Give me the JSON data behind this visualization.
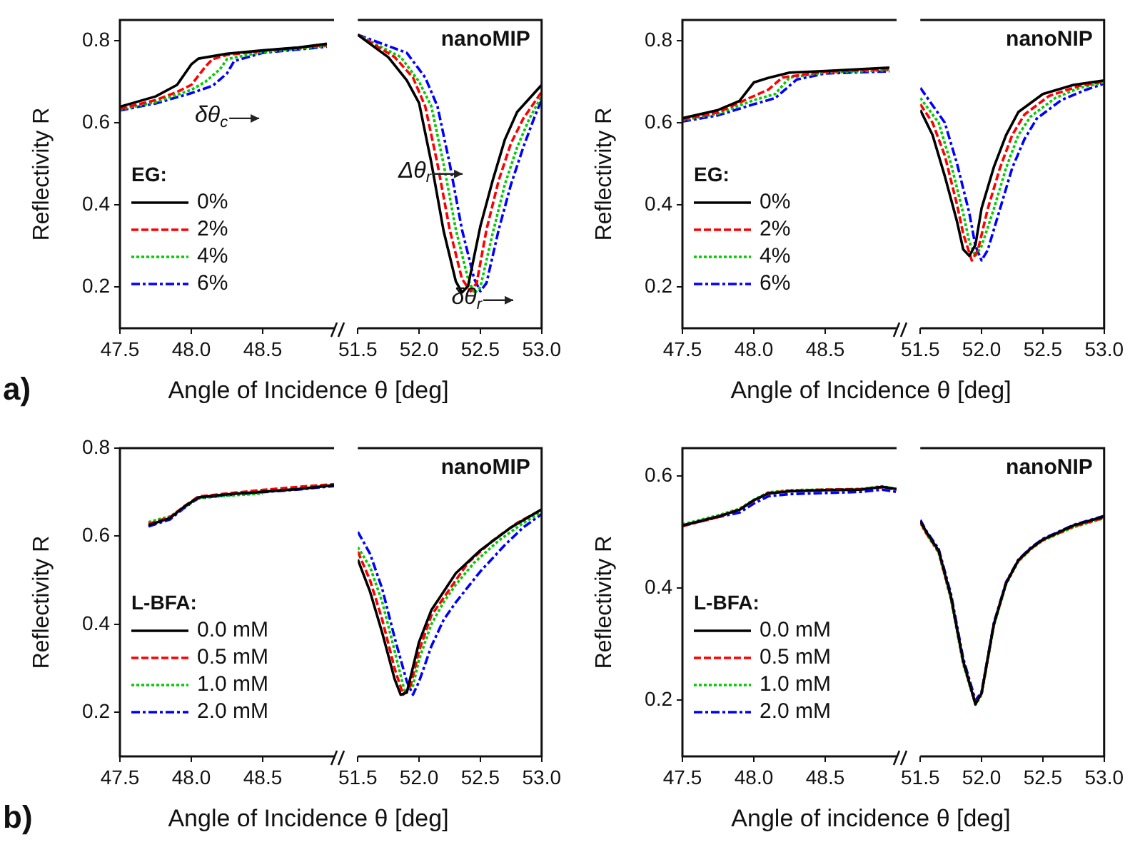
{
  "chart_data": [
    {
      "type": "line",
      "ylabel": "Reflectivity R",
      "xlabel": "Angle of Incidence θ [deg]",
      "legend_title": "EG:",
      "legend": "bottom left",
      "annotations": [
        "a)",
        "δθ$_{c}$"
      ],
      "xlim": [
        47.5,
        49.0
      ],
      "xticks": [
        47.5,
        {
          "value": 48,
          "label": "48.0"
        },
        48.5
      ],
      "ylim": [
        0.1,
        0.85
      ],
      "yticks": [
        0.2,
        0.4,
        0.6,
        0.8
      ],
      "series": [
        {
          "name": "0%",
          "color": "#000000",
          "line_style": "solid",
          "x": [
            47.5,
            47.75,
            47.9,
            48.0,
            48.05,
            48.25,
            48.5,
            48.75,
            48.95
          ],
          "values": [
            0.639,
            0.664,
            0.692,
            0.742,
            0.756,
            0.768,
            0.776,
            0.783,
            0.792
          ]
        },
        {
          "name": "2%",
          "color": "#ff0000",
          "line_style": "dashed",
          "x": [
            47.5,
            47.75,
            47.9,
            48.0,
            48.1,
            48.15,
            48.25,
            48.5,
            48.95
          ],
          "values": [
            0.634,
            0.655,
            0.675,
            0.692,
            0.737,
            0.755,
            0.765,
            0.775,
            0.789
          ]
        },
        {
          "name": "4%",
          "color": "#00cc00",
          "line_style": "dotted",
          "x": [
            47.5,
            47.75,
            48.0,
            48.1,
            48.2,
            48.25,
            48.5,
            48.95
          ],
          "values": [
            0.632,
            0.65,
            0.68,
            0.7,
            0.73,
            0.755,
            0.772,
            0.787
          ]
        },
        {
          "name": "6%",
          "color": "#0000ff",
          "line_style": "dashdot",
          "x": [
            47.5,
            47.75,
            48.0,
            48.15,
            48.25,
            48.3,
            48.5,
            48.95
          ],
          "values": [
            0.63,
            0.647,
            0.672,
            0.69,
            0.72,
            0.75,
            0.77,
            0.785
          ]
        }
      ]
    },
    {
      "type": "line",
      "tick_labels": "x",
      "annotations": [
        "nanoMIP",
        "Δθ$_{r}$",
        "δθ$_{r}$"
      ],
      "xlim": [
        51.5,
        53.0
      ],
      "xticks": [
        51.5,
        {
          "value": 52,
          "label": "52.0"
        },
        52.5,
        {
          "value": 53,
          "label": "53.0"
        }
      ],
      "ylim": [
        0.1,
        0.85
      ],
      "yticks": [
        0.2,
        0.4,
        0.6,
        0.8
      ],
      "series": [
        {
          "color": "#000000",
          "line_style": "solid",
          "x": [
            51.5,
            51.75,
            51.9,
            52.0,
            52.1,
            52.2,
            52.3,
            52.35,
            52.4,
            52.5,
            52.6,
            52.7,
            52.8,
            53.0
          ],
          "values": [
            0.814,
            0.759,
            0.703,
            0.648,
            0.503,
            0.337,
            0.214,
            0.187,
            0.203,
            0.348,
            0.459,
            0.559,
            0.626,
            0.692
          ]
        },
        {
          "color": "#ff0000",
          "line_style": "dashed",
          "x": [
            51.5,
            51.8,
            51.95,
            52.05,
            52.15,
            52.25,
            52.35,
            52.42,
            52.47,
            52.55,
            52.65,
            52.75,
            52.85,
            53.0
          ],
          "values": [
            0.814,
            0.76,
            0.71,
            0.64,
            0.5,
            0.34,
            0.22,
            0.19,
            0.21,
            0.34,
            0.46,
            0.55,
            0.61,
            0.675
          ]
        },
        {
          "color": "#00cc00",
          "line_style": "dotted",
          "x": [
            51.5,
            51.85,
            52.0,
            52.1,
            52.2,
            52.3,
            52.4,
            52.45,
            52.5,
            52.6,
            52.7,
            52.8,
            52.9,
            53.0
          ],
          "values": [
            0.814,
            0.76,
            0.7,
            0.64,
            0.5,
            0.34,
            0.22,
            0.185,
            0.2,
            0.33,
            0.45,
            0.54,
            0.61,
            0.665
          ]
        },
        {
          "color": "#0000ff",
          "line_style": "dashdot",
          "x": [
            51.5,
            51.9,
            52.05,
            52.15,
            52.25,
            52.35,
            52.45,
            52.5,
            52.55,
            52.65,
            52.75,
            52.85,
            52.95,
            53.0
          ],
          "values": [
            0.814,
            0.77,
            0.71,
            0.64,
            0.5,
            0.34,
            0.22,
            0.19,
            0.21,
            0.34,
            0.45,
            0.54,
            0.62,
            0.655
          ]
        }
      ]
    },
    {
      "type": "line",
      "ylabel": "Reflectivity R",
      "xlabel": "Angle of Incidence θ [deg]",
      "legend_title": "EG:",
      "legend": "bottom left",
      "xlim": [
        47.5,
        49.0
      ],
      "xticks": [
        47.5,
        {
          "value": 48,
          "label": "48.0"
        },
        48.5
      ],
      "ylim": [
        0.1,
        0.85
      ],
      "yticks": [
        0.2,
        0.4,
        0.6,
        0.8
      ],
      "series": [
        {
          "name": "0%",
          "color": "#000000",
          "line_style": "solid",
          "x": [
            47.5,
            47.75,
            47.9,
            48.0,
            48.1,
            48.25,
            48.5,
            48.95
          ],
          "values": [
            0.611,
            0.631,
            0.653,
            0.698,
            0.709,
            0.722,
            0.726,
            0.734
          ]
        },
        {
          "name": "2%",
          "color": "#ff0000",
          "line_style": "dashed",
          "x": [
            47.5,
            47.75,
            48.0,
            48.1,
            48.2,
            48.5,
            48.95
          ],
          "values": [
            0.608,
            0.625,
            0.665,
            0.68,
            0.71,
            0.724,
            0.731
          ]
        },
        {
          "name": "4%",
          "color": "#00cc00",
          "line_style": "dotted",
          "x": [
            47.5,
            47.75,
            48.0,
            48.15,
            48.25,
            48.5,
            48.95
          ],
          "values": [
            0.606,
            0.622,
            0.655,
            0.67,
            0.71,
            0.722,
            0.728
          ]
        },
        {
          "name": "6%",
          "color": "#0000ff",
          "line_style": "dashdot",
          "x": [
            47.5,
            47.75,
            48.0,
            48.15,
            48.3,
            48.5,
            48.95
          ],
          "values": [
            0.603,
            0.618,
            0.645,
            0.66,
            0.705,
            0.72,
            0.725
          ]
        }
      ]
    },
    {
      "type": "line",
      "tick_labels": "x",
      "annotations": [
        "nanoNIP"
      ],
      "xlim": [
        51.5,
        53.0
      ],
      "xticks": [
        51.5,
        {
          "value": 52,
          "label": "52.0"
        },
        52.5,
        {
          "value": 53,
          "label": "53.0"
        }
      ],
      "ylim": [
        0.1,
        0.85
      ],
      "yticks": [
        0.2,
        0.4,
        0.6,
        0.8
      ],
      "series": [
        {
          "color": "#000000",
          "line_style": "solid",
          "x": [
            51.5,
            51.6,
            51.7,
            51.8,
            51.85,
            51.9,
            51.95,
            52.0,
            52.1,
            52.2,
            52.3,
            52.5,
            52.75,
            53.0
          ],
          "values": [
            0.631,
            0.57,
            0.47,
            0.359,
            0.292,
            0.276,
            0.303,
            0.392,
            0.492,
            0.57,
            0.626,
            0.67,
            0.692,
            0.703
          ]
        },
        {
          "color": "#ff0000",
          "line_style": "dashed",
          "x": [
            51.5,
            51.6,
            51.7,
            51.8,
            51.85,
            51.92,
            51.97,
            52.05,
            52.15,
            52.25,
            52.35,
            52.55,
            52.8,
            53.0
          ],
          "values": [
            0.645,
            0.6,
            0.52,
            0.4,
            0.33,
            0.265,
            0.29,
            0.39,
            0.49,
            0.57,
            0.62,
            0.665,
            0.69,
            0.7
          ]
        },
        {
          "color": "#00cc00",
          "line_style": "dotted",
          "x": [
            51.5,
            51.65,
            51.75,
            51.85,
            51.9,
            51.95,
            52.0,
            52.1,
            52.2,
            52.3,
            52.4,
            52.6,
            52.8,
            53.0
          ],
          "values": [
            0.66,
            0.6,
            0.5,
            0.38,
            0.31,
            0.275,
            0.3,
            0.39,
            0.49,
            0.57,
            0.615,
            0.66,
            0.685,
            0.698
          ]
        },
        {
          "color": "#0000ff",
          "line_style": "dashdot",
          "x": [
            51.5,
            51.7,
            51.8,
            51.9,
            51.95,
            52.0,
            52.05,
            52.15,
            52.25,
            52.35,
            52.45,
            52.65,
            52.85,
            53.0
          ],
          "values": [
            0.685,
            0.6,
            0.5,
            0.38,
            0.3,
            0.265,
            0.29,
            0.39,
            0.49,
            0.56,
            0.61,
            0.655,
            0.68,
            0.695
          ]
        }
      ]
    },
    {
      "type": "line",
      "ylabel": "Reflectivity R",
      "xlabel": "Angle of Incidence θ [deg]",
      "legend_title": "L-BFA:",
      "legend": "bottom left",
      "annotations": [
        "b)"
      ],
      "xlim": [
        47.5,
        49.0
      ],
      "xticks": [
        47.5,
        {
          "value": 48,
          "label": "48.0"
        },
        48.5
      ],
      "ylim": [
        0.1,
        0.8
      ],
      "yticks": [
        0.2,
        0.4,
        0.6,
        0.8
      ],
      "series": [
        {
          "name": "0.0 mM",
          "color": "#000000",
          "line_style": "solid",
          "x": [
            47.7,
            47.85,
            47.95,
            48.05,
            48.25,
            48.5,
            48.75,
            49.0
          ],
          "values": [
            0.625,
            0.641,
            0.667,
            0.688,
            0.695,
            0.701,
            0.707,
            0.716
          ]
        },
        {
          "name": "0.5 mM",
          "color": "#ff0000",
          "line_style": "dashed",
          "x": [
            47.7,
            47.85,
            47.95,
            48.05,
            48.25,
            48.5,
            48.75,
            49.0
          ],
          "values": [
            0.628,
            0.643,
            0.668,
            0.69,
            0.697,
            0.705,
            0.712,
            0.718
          ]
        },
        {
          "name": "1.0 mM",
          "color": "#00cc00",
          "line_style": "dotted",
          "x": [
            47.7,
            47.85,
            47.95,
            48.05,
            48.25,
            48.5
          ],
          "values": [
            0.632,
            0.645,
            0.665,
            0.687,
            0.692,
            0.697
          ]
        },
        {
          "name": "2.0 mM",
          "color": "#0000ff",
          "line_style": "dashdot",
          "x": [
            47.7,
            47.85,
            47.95,
            48.05,
            48.25,
            48.5,
            48.75,
            49.0
          ],
          "values": [
            0.622,
            0.638,
            0.664,
            0.686,
            0.693,
            0.7,
            0.706,
            0.714
          ]
        }
      ]
    },
    {
      "type": "line",
      "tick_labels": "x",
      "annotations": [
        "nanoMIP"
      ],
      "xlim": [
        51.5,
        53.0
      ],
      "xticks": [
        51.5,
        {
          "value": 52,
          "label": "52.0"
        },
        52.5,
        {
          "value": 53,
          "label": "53.0"
        }
      ],
      "ylim": [
        0.1,
        0.8
      ],
      "yticks": [
        0.2,
        0.4,
        0.6,
        0.8
      ],
      "series": [
        {
          "color": "#000000",
          "line_style": "solid",
          "x": [
            51.5,
            51.6,
            51.7,
            51.8,
            51.85,
            51.9,
            52.0,
            52.1,
            52.2,
            52.3,
            52.5,
            52.75,
            53.0
          ],
          "values": [
            0.547,
            0.474,
            0.38,
            0.276,
            0.24,
            0.245,
            0.36,
            0.432,
            0.474,
            0.516,
            0.568,
            0.62,
            0.661
          ]
        },
        {
          "color": "#ff0000",
          "line_style": "dashed",
          "x": [
            51.5,
            51.6,
            51.7,
            51.8,
            51.87,
            51.93,
            52.0,
            52.1,
            52.2,
            52.3,
            52.4,
            52.6,
            52.8,
            53.0
          ],
          "values": [
            0.565,
            0.5,
            0.41,
            0.3,
            0.24,
            0.26,
            0.34,
            0.42,
            0.46,
            0.5,
            0.54,
            0.59,
            0.63,
            0.66
          ]
        },
        {
          "color": "#00cc00",
          "line_style": "dotted",
          "x": [
            51.5,
            51.6,
            51.7,
            51.8,
            51.88,
            51.95,
            52.0,
            52.1,
            52.2,
            52.3,
            52.45,
            52.65,
            52.85,
            53.0
          ],
          "values": [
            0.575,
            0.53,
            0.45,
            0.34,
            0.25,
            0.26,
            0.32,
            0.4,
            0.45,
            0.49,
            0.54,
            0.59,
            0.63,
            0.655
          ]
        },
        {
          "color": "#0000ff",
          "line_style": "dashdot",
          "x": [
            51.5,
            51.6,
            51.7,
            51.8,
            51.9,
            51.95,
            52.0,
            52.1,
            52.2,
            52.3,
            52.5,
            52.7,
            52.85,
            53.0
          ],
          "values": [
            0.61,
            0.56,
            0.48,
            0.37,
            0.27,
            0.24,
            0.27,
            0.35,
            0.41,
            0.45,
            0.52,
            0.58,
            0.62,
            0.65
          ]
        }
      ]
    },
    {
      "type": "line",
      "ylabel": "Reflectivity R",
      "xlabel": "Angle of incidence θ [deg]",
      "legend_title": "L-BFA:",
      "legend": "bottom left",
      "xlim": [
        47.5,
        49.0
      ],
      "xticks": [
        47.5,
        {
          "value": 48,
          "label": "48.0"
        },
        48.5
      ],
      "ylim": [
        0.1,
        0.65
      ],
      "yticks": [
        0.2,
        0.4,
        0.6
      ],
      "series": [
        {
          "name": "0.0 mM",
          "color": "#000000",
          "line_style": "solid",
          "x": [
            47.5,
            47.75,
            47.9,
            48.0,
            48.1,
            48.25,
            48.5,
            48.75,
            48.9,
            49.0
          ],
          "values": [
            0.512,
            0.528,
            0.54,
            0.557,
            0.569,
            0.573,
            0.575,
            0.576,
            0.581,
            0.577
          ]
        },
        {
          "name": "0.5 mM",
          "color": "#ff0000",
          "line_style": "dashed",
          "x": [
            47.5,
            47.75,
            47.9,
            48.0,
            48.1,
            48.25,
            48.5,
            48.75,
            48.9,
            49.0
          ],
          "values": [
            0.511,
            0.527,
            0.541,
            0.556,
            0.57,
            0.574,
            0.576,
            0.577,
            0.58,
            0.576
          ]
        },
        {
          "name": "1.0 mM",
          "color": "#00cc00",
          "line_style": "dotted",
          "x": [
            47.5,
            47.75,
            47.9,
            48.0,
            48.1,
            48.25,
            48.5,
            48.75,
            48.9,
            49.0
          ],
          "values": [
            0.514,
            0.53,
            0.542,
            0.558,
            0.571,
            0.575,
            0.576,
            0.577,
            0.582,
            0.577
          ]
        },
        {
          "name": "2.0 mM",
          "color": "#0000ff",
          "line_style": "dashdot",
          "x": [
            47.5,
            47.75,
            47.9,
            48.0,
            48.1,
            48.25,
            48.5,
            48.75,
            48.9,
            49.0
          ],
          "values": [
            0.511,
            0.527,
            0.535,
            0.551,
            0.564,
            0.568,
            0.57,
            0.572,
            0.576,
            0.572
          ]
        }
      ]
    },
    {
      "type": "line",
      "tick_labels": "x",
      "annotations": [
        "nanoNIP"
      ],
      "xlim": [
        51.5,
        53.0
      ],
      "xticks": [
        51.5,
        {
          "value": 52,
          "label": "52.0"
        },
        52.5,
        {
          "value": 53,
          "label": "53.0"
        }
      ],
      "ylim": [
        0.1,
        0.65
      ],
      "yticks": [
        0.2,
        0.4,
        0.6
      ],
      "series": [
        {
          "color": "#000000",
          "line_style": "solid",
          "x": [
            51.5,
            51.55,
            51.65,
            51.75,
            51.85,
            51.95,
            52.0,
            52.1,
            52.2,
            52.3,
            52.4,
            52.5,
            52.75,
            53.0
          ],
          "values": [
            0.52,
            0.5,
            0.467,
            0.385,
            0.27,
            0.193,
            0.213,
            0.336,
            0.409,
            0.45,
            0.471,
            0.487,
            0.512,
            0.528
          ]
        },
        {
          "color": "#ff0000",
          "line_style": "dashed",
          "x": [
            51.5,
            51.55,
            51.65,
            51.75,
            51.85,
            51.95,
            52.0,
            52.1,
            52.2,
            52.3,
            52.4,
            52.5,
            52.75,
            53.0
          ],
          "values": [
            0.518,
            0.498,
            0.465,
            0.383,
            0.268,
            0.195,
            0.212,
            0.335,
            0.41,
            0.449,
            0.47,
            0.486,
            0.51,
            0.526
          ]
        },
        {
          "color": "#00cc00",
          "line_style": "dotted",
          "x": [
            51.5,
            51.55,
            51.65,
            51.75,
            51.85,
            51.95,
            52.0,
            52.1,
            52.2,
            52.3,
            52.4,
            52.5,
            52.75,
            53.0
          ],
          "values": [
            0.516,
            0.497,
            0.463,
            0.38,
            0.265,
            0.192,
            0.21,
            0.333,
            0.407,
            0.448,
            0.469,
            0.485,
            0.509,
            0.525
          ]
        },
        {
          "color": "#0000ff",
          "line_style": "dashdot",
          "x": [
            51.5,
            51.55,
            51.65,
            51.75,
            51.85,
            51.95,
            52.0,
            52.1,
            52.2,
            52.3,
            52.4,
            52.5,
            52.75,
            53.0
          ],
          "values": [
            0.522,
            0.502,
            0.47,
            0.39,
            0.275,
            0.2,
            0.215,
            0.338,
            0.411,
            0.451,
            0.472,
            0.488,
            0.513,
            0.529
          ]
        }
      ]
    }
  ]
}
